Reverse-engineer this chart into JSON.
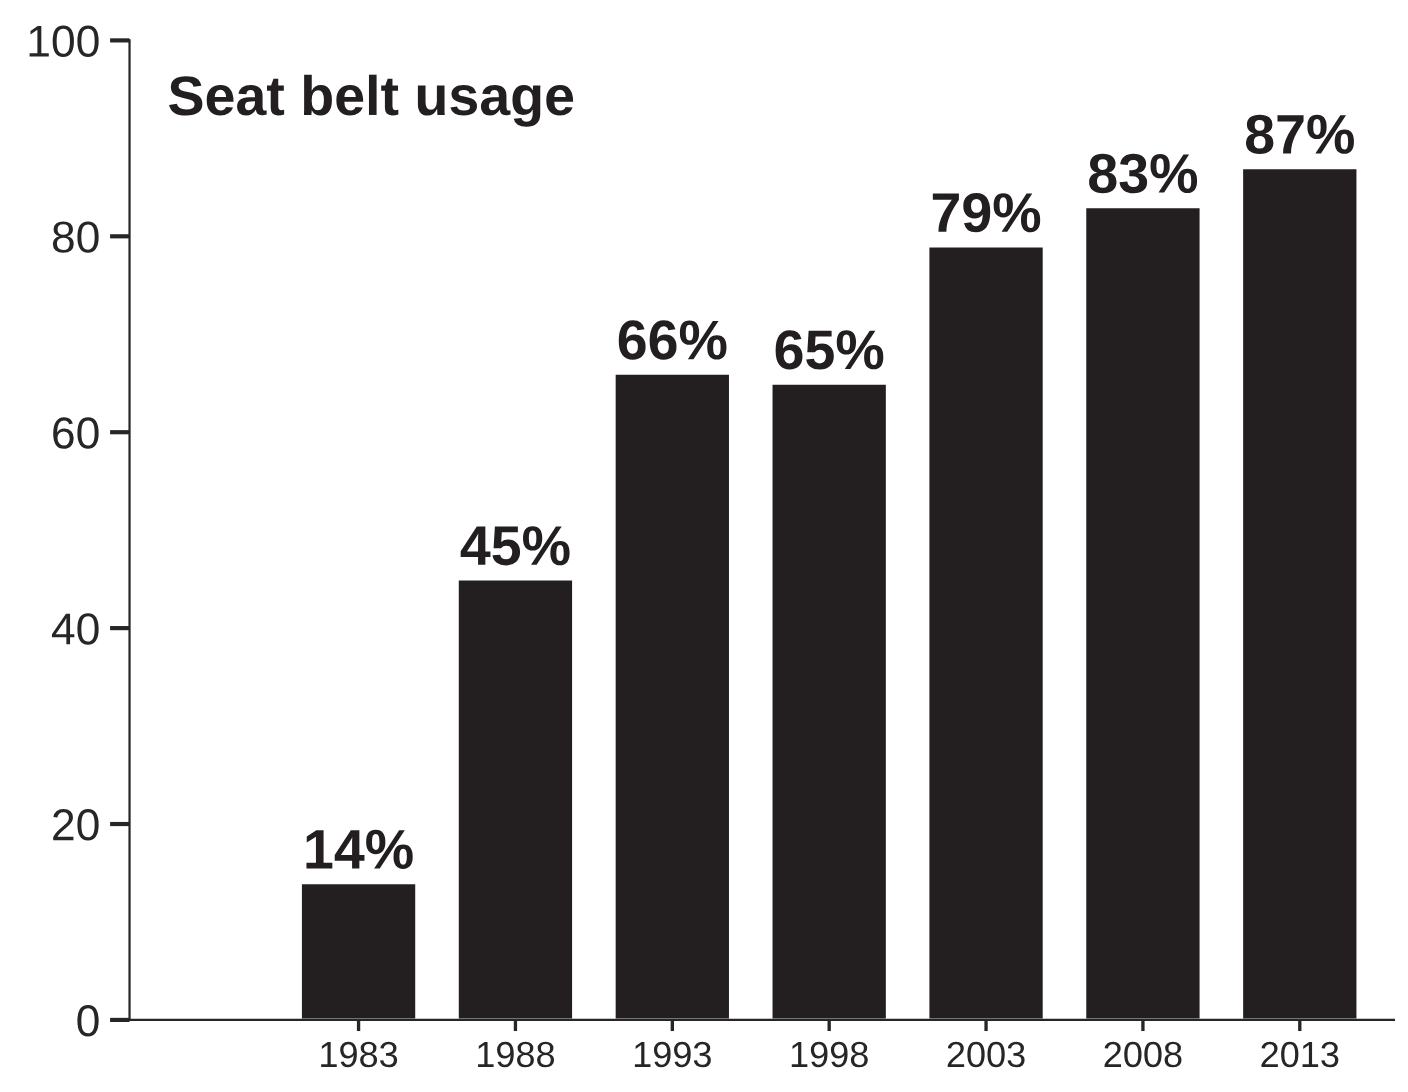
{
  "chart_data": {
    "type": "bar",
    "title": "Seat belt usage",
    "categories": [
      "1983",
      "1988",
      "1993",
      "1998",
      "2003",
      "2008",
      "2013"
    ],
    "values": [
      14,
      45,
      66,
      65,
      79,
      83,
      87
    ],
    "value_labels": [
      "14%",
      "45%",
      "66%",
      "65%",
      "79%",
      "83%",
      "87%"
    ],
    "color": "#231f20",
    "ylim": [
      0,
      100
    ],
    "yticks": [
      0,
      20,
      40,
      60,
      80,
      100
    ],
    "grid": false,
    "legend": false
  }
}
